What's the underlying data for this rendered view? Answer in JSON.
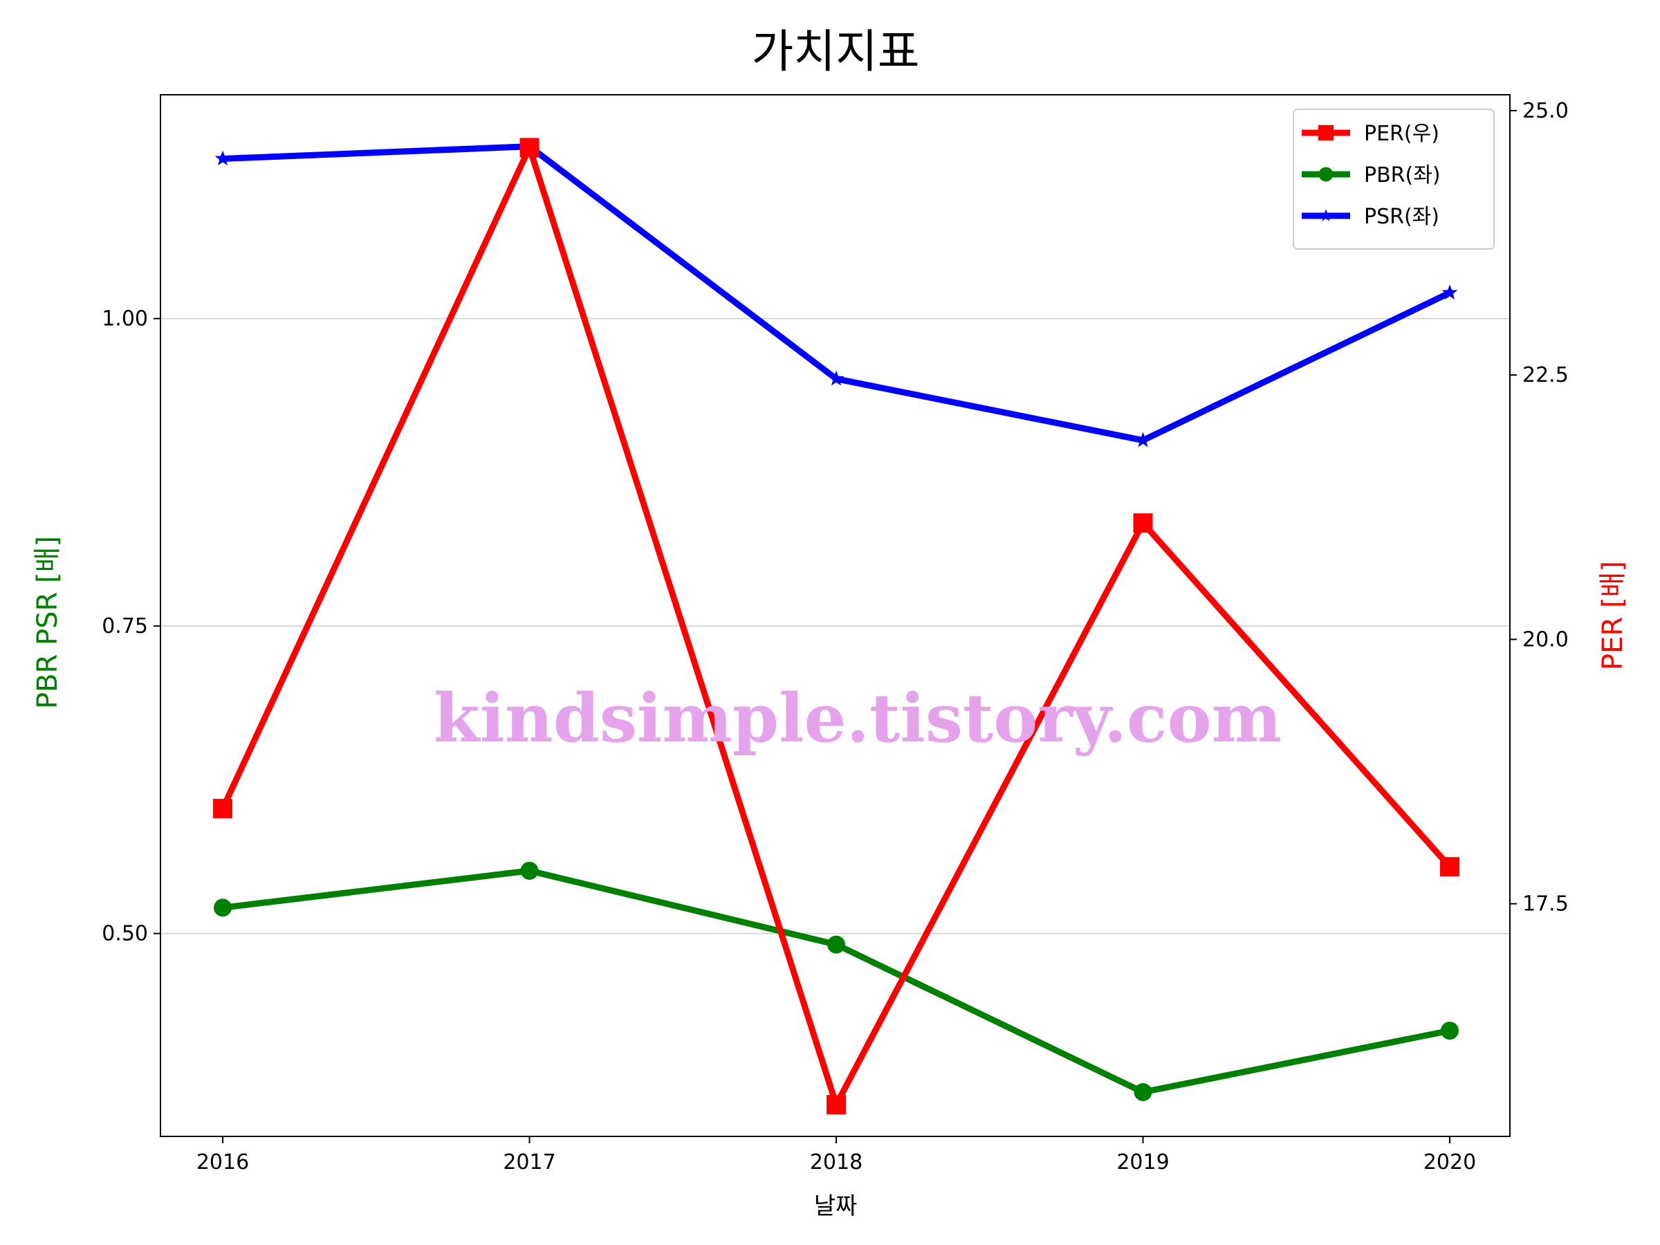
{
  "chart_data": {
    "type": "line",
    "title": "가치지표",
    "xlabel": "날짜",
    "ylabel_left": "PBR PSR [배]",
    "ylabel_right": "PER [배]",
    "categories": [
      "2016",
      "2017",
      "2018",
      "2019",
      "2020"
    ],
    "left_axis": {
      "ylim": [
        0.335,
        1.182
      ],
      "ticks": [
        0.5,
        0.75,
        1.0
      ],
      "tick_labels": [
        "0.50",
        "0.75",
        "1.00"
      ],
      "grid": true
    },
    "right_axis": {
      "ylim": [
        15.3,
        25.15
      ],
      "ticks": [
        17.5,
        20.0,
        22.5,
        25.0
      ],
      "tick_labels": [
        "17.5",
        "20.0",
        "22.5",
        "25.0"
      ]
    },
    "series": [
      {
        "name": "PER(우)",
        "axis": "right",
        "color": "#ff0000",
        "marker": "square",
        "values": [
          18.4,
          24.65,
          15.6,
          21.1,
          17.85
        ]
      },
      {
        "name": "PBR(좌)",
        "axis": "left",
        "color": "#008000",
        "marker": "circle",
        "values": [
          0.521,
          0.551,
          0.491,
          0.371,
          0.421
        ]
      },
      {
        "name": "PSR(좌)",
        "axis": "left",
        "color": "#0000ff",
        "marker": "star",
        "values": [
          1.13,
          1.14,
          0.951,
          0.901,
          1.021
        ]
      }
    ],
    "legend_position": "top-right",
    "watermark": "kindsimple.tistory.com"
  }
}
